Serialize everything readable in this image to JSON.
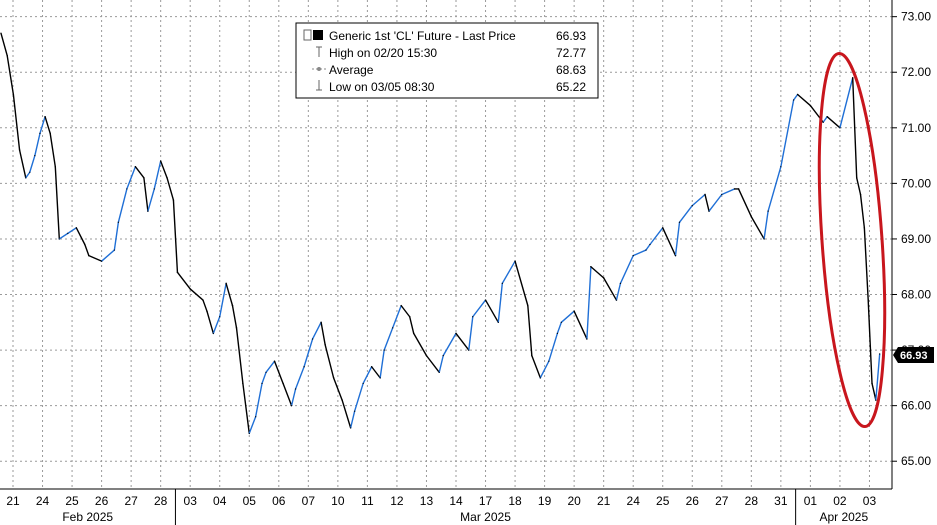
{
  "chart_data": {
    "type": "line",
    "title": "",
    "xlabel": "",
    "ylabel": "",
    "ylim": [
      64.5,
      73.3
    ],
    "y_ticks": [
      "65.00",
      "66.00",
      "67.00",
      "68.00",
      "69.00",
      "70.00",
      "71.00",
      "72.00",
      "73.00"
    ],
    "grid": "dotted",
    "legend_placement": "top-center",
    "colors": {
      "price_up": "#1f6fd6",
      "price_down": "#000000",
      "highlight_ellipse": "#c8161d",
      "last_price_box": "#000000"
    },
    "legend": {
      "series": {
        "label": "Generic 1st 'CL' Future - Last Price",
        "value": "66.93"
      },
      "high": {
        "label": "High on 02/20 15:30",
        "value": "72.77"
      },
      "average": {
        "label": "Average",
        "value": "68.63"
      },
      "low": {
        "label": "Low on 03/05 08:30",
        "value": "65.22"
      }
    },
    "last_price_label": "66.93",
    "day_labels": [
      "21",
      "24",
      "25",
      "26",
      "27",
      "28",
      "03",
      "04",
      "05",
      "06",
      "07",
      "10",
      "11",
      "12",
      "13",
      "14",
      "17",
      "18",
      "19",
      "20",
      "21",
      "24",
      "25",
      "26",
      "27",
      "28",
      "31",
      "01",
      "02",
      "03"
    ],
    "month_labels": [
      "Feb 2025",
      "Mar 2025",
      "Apr 2025"
    ],
    "series": [
      {
        "name": "Generic 1st 'CL' Future - Last Price",
        "points": [
          {
            "x": "02/21",
            "y": 72.7
          },
          {
            "x": "02/21",
            "y": 72.3
          },
          {
            "x": "02/21",
            "y": 71.6
          },
          {
            "x": "02/21",
            "y": 70.6
          },
          {
            "x": "02/21",
            "y": 70.1
          },
          {
            "x": "02/24",
            "y": 70.2
          },
          {
            "x": "02/24",
            "y": 70.5
          },
          {
            "x": "02/24",
            "y": 70.9
          },
          {
            "x": "02/24",
            "y": 71.2
          },
          {
            "x": "02/24",
            "y": 70.9
          },
          {
            "x": "02/24",
            "y": 70.3
          },
          {
            "x": "02/25",
            "y": 69.0
          },
          {
            "x": "02/25",
            "y": 69.1
          },
          {
            "x": "02/25",
            "y": 69.2
          },
          {
            "x": "02/25",
            "y": 68.9
          },
          {
            "x": "02/26",
            "y": 68.7
          },
          {
            "x": "02/26",
            "y": 68.6
          },
          {
            "x": "02/26",
            "y": 68.8
          },
          {
            "x": "02/27",
            "y": 69.3
          },
          {
            "x": "02/27",
            "y": 69.9
          },
          {
            "x": "02/27",
            "y": 70.3
          },
          {
            "x": "02/27",
            "y": 70.1
          },
          {
            "x": "02/28",
            "y": 69.5
          },
          {
            "x": "02/28",
            "y": 69.9
          },
          {
            "x": "02/28",
            "y": 70.4
          },
          {
            "x": "02/28",
            "y": 70.1
          },
          {
            "x": "02/28",
            "y": 69.7
          },
          {
            "x": "03/03",
            "y": 68.4
          },
          {
            "x": "03/03",
            "y": 68.1
          },
          {
            "x": "03/03",
            "y": 67.9
          },
          {
            "x": "03/04",
            "y": 67.7
          },
          {
            "x": "03/04",
            "y": 67.3
          },
          {
            "x": "03/04",
            "y": 67.6
          },
          {
            "x": "03/04",
            "y": 68.2
          },
          {
            "x": "03/04",
            "y": 67.8
          },
          {
            "x": "03/05",
            "y": 67.4
          },
          {
            "x": "03/05",
            "y": 66.4
          },
          {
            "x": "03/05",
            "y": 65.5
          },
          {
            "x": "03/05",
            "y": 65.8
          },
          {
            "x": "03/05",
            "y": 66.4
          },
          {
            "x": "03/06",
            "y": 66.6
          },
          {
            "x": "03/06",
            "y": 66.8
          },
          {
            "x": "03/06",
            "y": 66.4
          },
          {
            "x": "03/06",
            "y": 66.0
          },
          {
            "x": "03/07",
            "y": 66.3
          },
          {
            "x": "03/07",
            "y": 66.7
          },
          {
            "x": "03/07",
            "y": 67.2
          },
          {
            "x": "03/07",
            "y": 67.5
          },
          {
            "x": "03/10",
            "y": 67.1
          },
          {
            "x": "03/10",
            "y": 66.5
          },
          {
            "x": "03/10",
            "y": 66.1
          },
          {
            "x": "03/10",
            "y": 65.6
          },
          {
            "x": "03/11",
            "y": 65.9
          },
          {
            "x": "03/11",
            "y": 66.4
          },
          {
            "x": "03/11",
            "y": 66.7
          },
          {
            "x": "03/11",
            "y": 66.5
          },
          {
            "x": "03/12",
            "y": 67.0
          },
          {
            "x": "03/12",
            "y": 67.4
          },
          {
            "x": "03/12",
            "y": 67.8
          },
          {
            "x": "03/12",
            "y": 67.6
          },
          {
            "x": "03/13",
            "y": 67.3
          },
          {
            "x": "03/13",
            "y": 66.9
          },
          {
            "x": "03/13",
            "y": 66.6
          },
          {
            "x": "03/14",
            "y": 66.9
          },
          {
            "x": "03/14",
            "y": 67.3
          },
          {
            "x": "03/14",
            "y": 67.0
          },
          {
            "x": "03/17",
            "y": 67.6
          },
          {
            "x": "03/17",
            "y": 67.9
          },
          {
            "x": "03/17",
            "y": 67.5
          },
          {
            "x": "03/18",
            "y": 68.2
          },
          {
            "x": "03/18",
            "y": 68.6
          },
          {
            "x": "03/18",
            "y": 67.8
          },
          {
            "x": "03/19",
            "y": 66.9
          },
          {
            "x": "03/19",
            "y": 66.5
          },
          {
            "x": "03/19",
            "y": 66.8
          },
          {
            "x": "03/19",
            "y": 67.3
          },
          {
            "x": "03/20",
            "y": 67.5
          },
          {
            "x": "03/20",
            "y": 67.7
          },
          {
            "x": "03/20",
            "y": 67.2
          },
          {
            "x": "03/21",
            "y": 68.5
          },
          {
            "x": "03/21",
            "y": 68.3
          },
          {
            "x": "03/21",
            "y": 67.9
          },
          {
            "x": "03/24",
            "y": 68.2
          },
          {
            "x": "03/24",
            "y": 68.7
          },
          {
            "x": "03/24",
            "y": 68.8
          },
          {
            "x": "03/25",
            "y": 68.9
          },
          {
            "x": "03/25",
            "y": 69.2
          },
          {
            "x": "03/25",
            "y": 68.7
          },
          {
            "x": "03/26",
            "y": 69.3
          },
          {
            "x": "03/26",
            "y": 69.6
          },
          {
            "x": "03/26",
            "y": 69.8
          },
          {
            "x": "03/27",
            "y": 69.5
          },
          {
            "x": "03/27",
            "y": 69.8
          },
          {
            "x": "03/27",
            "y": 69.9
          },
          {
            "x": "03/28",
            "y": 69.9
          },
          {
            "x": "03/28",
            "y": 69.4
          },
          {
            "x": "03/28",
            "y": 69.0
          },
          {
            "x": "03/31",
            "y": 69.5
          },
          {
            "x": "03/31",
            "y": 70.3
          },
          {
            "x": "03/31",
            "y": 71.5
          },
          {
            "x": "04/01",
            "y": 71.6
          },
          {
            "x": "04/01",
            "y": 71.4
          },
          {
            "x": "04/01",
            "y": 71.1
          },
          {
            "x": "04/02",
            "y": 71.2
          },
          {
            "x": "04/02",
            "y": 71.0
          },
          {
            "x": "04/02",
            "y": 71.9
          },
          {
            "x": "04/03",
            "y": 70.1
          },
          {
            "x": "04/03",
            "y": 69.8
          },
          {
            "x": "04/03",
            "y": 69.2
          },
          {
            "x": "04/03",
            "y": 67.9
          },
          {
            "x": "04/03",
            "y": 66.4
          },
          {
            "x": "04/03",
            "y": 66.1
          },
          {
            "x": "04/03",
            "y": 66.93
          }
        ]
      }
    ]
  }
}
